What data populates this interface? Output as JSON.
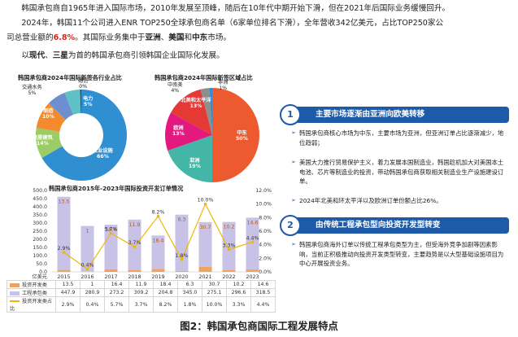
{
  "intro": {
    "line1": "韩国承包商自1965年进入国际市场，2010年发展至顶峰，随后在10年代中期开始下滑，但在2021年后国际业务缓慢回升。",
    "line2_a": "2024年，韩国11个公司进入ENR TOP250全球承包商名单（6家单位排名下滑），全年营收342亿美元，占比TOP250家公",
    "line3_a": "司总营业额的",
    "line3_pct": "6.8%",
    "line3_b": "。其国际业务集中于",
    "line3_r1": "亚洲",
    "line3_sep1": "、",
    "line3_r2": "美国",
    "line3_sep2": "和",
    "line3_r3": "中东",
    "line3_c": "市场。",
    "line4_a": "以",
    "line4_b1": "现代",
    "line4_sep": "、",
    "line4_b2": "三星",
    "line4_c": "为首的韩国承包商引领韩国企业国际化发展。"
  },
  "pie1": {
    "title": "韩国承包商2024年国际新签各行业占比",
    "labels": [
      {
        "name": "通信",
        "pct": "0%"
      },
      {
        "name": "交通水务",
        "pct": "5%"
      },
      {
        "name": "电力",
        "pct": "5%"
      },
      {
        "name": "制造",
        "pct": "10%"
      },
      {
        "name": "房屋建筑",
        "pct": "14%"
      },
      {
        "name": "工业设施",
        "pct": "66%"
      }
    ]
  },
  "pie2": {
    "title": "韩国承包商2024年国际新签区域占比",
    "labels": [
      {
        "name": "中南美",
        "pct": "4%"
      },
      {
        "name": "非洲",
        "pct": "1%"
      },
      {
        "name": "北美和太平洋",
        "pct": "13%"
      },
      {
        "name": "欧洲",
        "pct": "13%"
      },
      {
        "name": "中东",
        "pct": "50%"
      },
      {
        "name": "亚洲",
        "pct": "19%"
      }
    ]
  },
  "right": {
    "section1": {
      "num": "1",
      "title": "主要市场逐渐由亚洲向欧美转移",
      "bullets": [
        "韩国承包商核心市场为中东，主要市场为亚洲，但亚洲订单占比逐渐减少，地位趋弱；",
        "美国大力推行贸易保护主义，着力发展本国制造业，韩国趁机加大对美国本土电池、芯片等制造业的投资，带动韩国承包商获取相关制造业生产设施建设订单。",
        "2024年北美和环太平洋以及欧洲订单份额占比26%。"
      ]
    },
    "section2": {
      "num": "2",
      "title": "由传统工程承包型向投资开发型转变",
      "bullets": [
        "韩国承包商海外订单以传统工程承包类型为主，但受海外竞争加剧等因素影响，当前正积极推动向投资开发类型转变，主要趋势是以大型基础设施项目为中心开展投资业务。"
      ]
    }
  },
  "chart_data": {
    "type": "bar",
    "title": "韩国承包商2015年-2023年国际投资开发订单情况",
    "ylabel": "亿美元",
    "categories": [
      "2015",
      "2016",
      "2017",
      "2018",
      "2019",
      "2020",
      "2021",
      "2022",
      "2023"
    ],
    "ylim": [
      0,
      500
    ],
    "y2lim": [
      0,
      12
    ],
    "y_ticks": [
      "0.0",
      "50.0",
      "100.0",
      "150.0",
      "200.0",
      "250.0",
      "300.0",
      "350.0",
      "400.0",
      "450.0",
      "500.0"
    ],
    "y2_ticks": [
      "0.0%",
      "2.0%",
      "4.0%",
      "6.0%",
      "8.0%",
      "10.0%",
      "12.0%"
    ],
    "series": [
      {
        "name": "投资开发类",
        "type": "bar",
        "color": "#f0a35e",
        "values": [
          13.5,
          1.0,
          16.4,
          11.9,
          18.4,
          6.3,
          30.7,
          10.2,
          14.6
        ],
        "labels": [
          "13.5",
          "1",
          "16.4",
          "11.9",
          "18.4",
          "6.3",
          "30.7",
          "10.2",
          "14.6"
        ]
      },
      {
        "name": "工程承包类",
        "type": "bar",
        "color": "#c7c2e6",
        "values": [
          447.9,
          280.9,
          273.2,
          309.2,
          204.8,
          345.0,
          275.1,
          296.6,
          318.5
        ],
        "labels": [
          "447.9",
          "280.9",
          "273.2",
          "309.2",
          "204.8",
          "345.0",
          "275.1",
          "296.6",
          "318.5"
        ]
      },
      {
        "name": "投资开发类占比",
        "type": "line",
        "color": "#f2b705",
        "values": [
          2.9,
          0.4,
          5.7,
          3.7,
          8.2,
          1.8,
          10.0,
          3.3,
          4.4
        ],
        "labels": [
          "2.9%",
          "0.4%",
          "5.7%",
          "3.7%",
          "8.2%",
          "1.8%",
          "10.0%",
          "3.3%",
          "4.4%"
        ]
      }
    ]
  },
  "caption": "图2：韩国承包商国际工程发展特点"
}
